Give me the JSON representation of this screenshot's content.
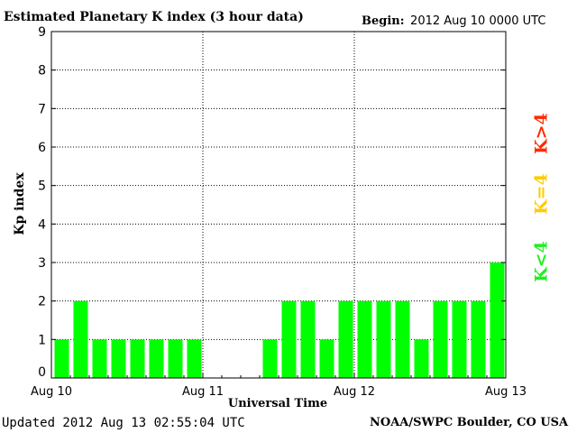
{
  "header": {
    "title": "Estimated Planetary K index (3 hour data)",
    "begin_label": "Begin:",
    "begin_value": "2012 Aug 10 0000 UTC"
  },
  "footer": {
    "updated": "Updated 2012 Aug 13 02:55:04 UTC",
    "credit": "NOAA/SWPC Boulder, CO USA"
  },
  "legend": [
    {
      "label": "K>4",
      "color": "#ff2a00"
    },
    {
      "label": "K=4",
      "color": "#ffcc00"
    },
    {
      "label": "K<4",
      "color": "#22ee22"
    }
  ],
  "chart_data": {
    "type": "bar",
    "title": "Estimated Planetary K index (3 hour data)",
    "xlabel": "Universal Time",
    "ylabel": "Kp index",
    "ylim": [
      0,
      9
    ],
    "yticks": [
      "0",
      "1",
      "2",
      "3",
      "4",
      "5",
      "6",
      "7",
      "8",
      "9"
    ],
    "xticks": [
      "Aug 10",
      "Aug 11",
      "Aug 12",
      "Aug 13"
    ],
    "interval_hours": 3,
    "grid": true,
    "bar_color": "#00ff00",
    "x": [
      "Aug 10 00-03",
      "Aug 10 03-06",
      "Aug 10 06-09",
      "Aug 10 09-12",
      "Aug 10 12-15",
      "Aug 10 15-18",
      "Aug 10 18-21",
      "Aug 10 21-24",
      "Aug 11 00-03",
      "Aug 11 03-06",
      "Aug 11 06-09",
      "Aug 11 09-12",
      "Aug 11 12-15",
      "Aug 11 15-18",
      "Aug 11 18-21",
      "Aug 11 21-24",
      "Aug 12 00-03",
      "Aug 12 03-06",
      "Aug 12 06-09",
      "Aug 12 09-12",
      "Aug 12 12-15",
      "Aug 12 15-18",
      "Aug 12 18-21",
      "Aug 12 21-24"
    ],
    "values": [
      1,
      2,
      1,
      1,
      1,
      1,
      1,
      1,
      null,
      null,
      null,
      1,
      2,
      2,
      1,
      2,
      2,
      2,
      2,
      1,
      2,
      2,
      2,
      3
    ]
  }
}
